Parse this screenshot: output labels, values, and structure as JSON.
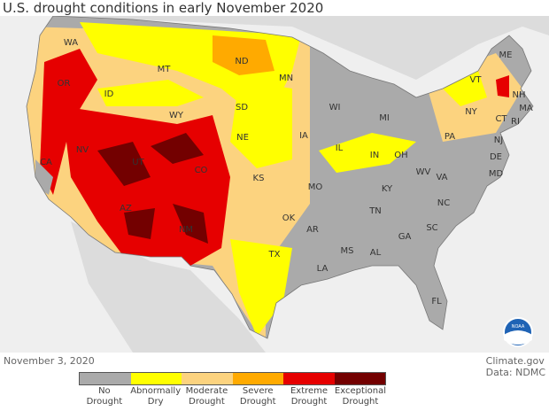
{
  "title": "U.S. drought conditions in early November 2020",
  "date": "November 3, 2020",
  "credit": {
    "line1": "Climate.gov",
    "line2": "Data: NDMC"
  },
  "logo": "NOAA",
  "legend": [
    {
      "label1": "No",
      "label2": "Drought",
      "color": "#aaaaaa"
    },
    {
      "label1": "Abnormally",
      "label2": "Dry",
      "color": "#ffff00"
    },
    {
      "label1": "Moderate",
      "label2": "Drought",
      "color": "#fcd37f"
    },
    {
      "label1": "Severe",
      "label2": "Drought",
      "color": "#ffaa00"
    },
    {
      "label1": "Extreme",
      "label2": "Drought",
      "color": "#e60000"
    },
    {
      "label1": "Exceptional",
      "label2": "Drought",
      "color": "#730000"
    }
  ],
  "states": [
    "WA",
    "OR",
    "CA",
    "NV",
    "ID",
    "MT",
    "WY",
    "UT",
    "CO",
    "AZ",
    "NM",
    "ND",
    "SD",
    "NE",
    "KS",
    "OK",
    "TX",
    "MN",
    "IA",
    "MO",
    "AR",
    "LA",
    "WI",
    "IL",
    "MS",
    "MI",
    "IN",
    "OH",
    "KY",
    "TN",
    "AL",
    "GA",
    "FL",
    "SC",
    "NC",
    "VA",
    "WV",
    "PA",
    "NY",
    "ME",
    "VT",
    "NH",
    "MA",
    "CT",
    "RI",
    "NJ",
    "DE",
    "MD"
  ]
}
